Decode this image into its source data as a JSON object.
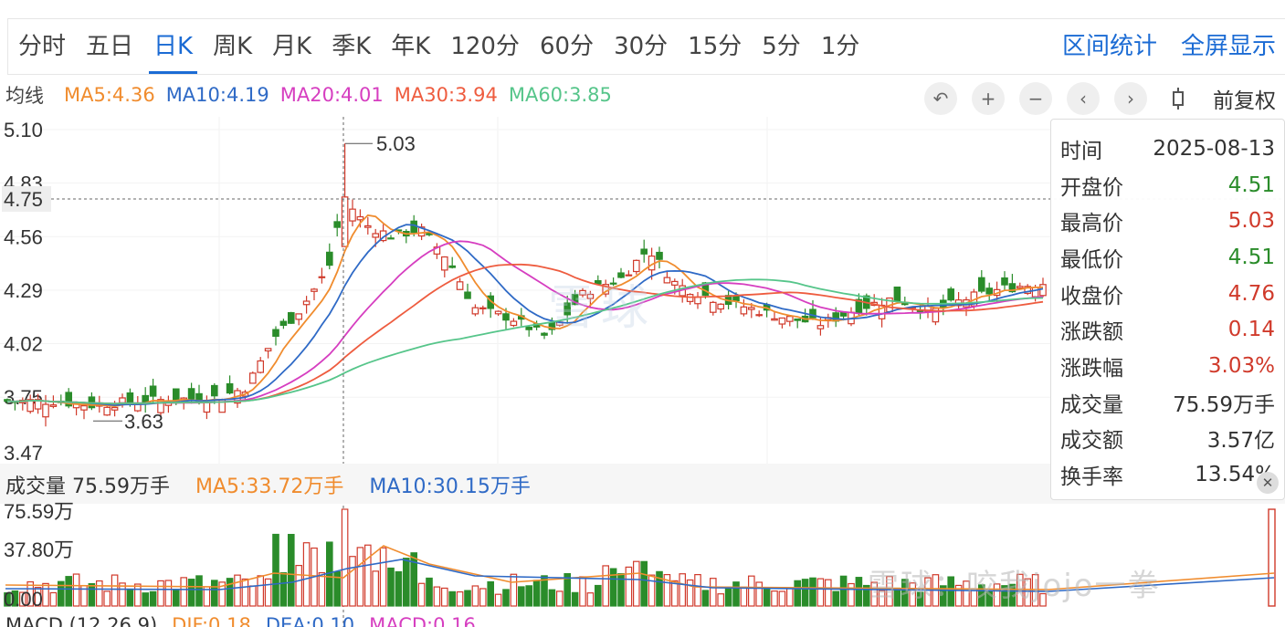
{
  "tabs": [
    "分时",
    "五日",
    "日K",
    "周K",
    "月K",
    "季K",
    "年K",
    "120分",
    "60分",
    "30分",
    "15分",
    "5分",
    "1分"
  ],
  "active_tab": "日K",
  "right_links": [
    "区间统计",
    "全屏显示"
  ],
  "ma": {
    "label": "均线",
    "items": [
      {
        "text": "MA5:4.36",
        "color": "#f08c2e"
      },
      {
        "text": "MA10:4.19",
        "color": "#2f6ac6"
      },
      {
        "text": "MA20:4.01",
        "color": "#d63ec0"
      },
      {
        "text": "MA30:3.94",
        "color": "#ee5c3f"
      },
      {
        "text": "MA60:3.85",
        "color": "#56c58a"
      }
    ]
  },
  "toolbar": {
    "icons": [
      "undo-icon",
      "zoom-in-icon",
      "zoom-out-icon",
      "chevron-left-icon",
      "chevron-right-icon",
      "candle-icon"
    ],
    "adjust_label": "前复权"
  },
  "y_axis": {
    "labels": [
      "5.10",
      "4.83",
      "4.75",
      "4.56",
      "4.29",
      "4.02",
      "3.75",
      "3.47"
    ],
    "crosshair_value": "4.75",
    "max_label": "5.03",
    "min_label": "3.63"
  },
  "info": {
    "rows": [
      {
        "k": "时间",
        "v": "2025-08-13",
        "color": "#333333"
      },
      {
        "k": "开盘价",
        "v": "4.51",
        "color": "#2a8c2a"
      },
      {
        "k": "最高价",
        "v": "5.03",
        "color": "#d03a2b"
      },
      {
        "k": "最低价",
        "v": "4.51",
        "color": "#2a8c2a"
      },
      {
        "k": "收盘价",
        "v": "4.76",
        "color": "#d03a2b"
      },
      {
        "k": "涨跌额",
        "v": "0.14",
        "color": "#d03a2b"
      },
      {
        "k": "涨跌幅",
        "v": "3.03%",
        "color": "#d03a2b"
      },
      {
        "k": "成交量",
        "v": "75.59万手",
        "color": "#333333"
      },
      {
        "k": "成交额",
        "v": "3.57亿",
        "color": "#333333"
      },
      {
        "k": "换手率",
        "v": "13.54%",
        "color": "#333333"
      }
    ]
  },
  "volume": {
    "title": "成交量 75.59万手",
    "ma5": "MA5:33.72万手",
    "ma10": "MA10:30.15万手",
    "ma5_color": "#f08c2e",
    "ma10_color": "#2f6ac6",
    "labels": [
      "75.59万",
      "37.80万",
      "0.00"
    ]
  },
  "macd": {
    "title": "MACD (12,26,9)",
    "dif": "DIF:0.18",
    "dea": "DEA:0.10",
    "macd": "MACD:0.16",
    "dif_color": "#f08c2e",
    "dea_color": "#2f6ac6",
    "macd_color": "#d63ec0"
  },
  "watermark": "雪球：咬我jojo一拳",
  "center_watermark": "雪球",
  "colors": {
    "up": "#d03a2b",
    "down": "#2a8c2a",
    "accent": "#1b6bd4"
  }
}
